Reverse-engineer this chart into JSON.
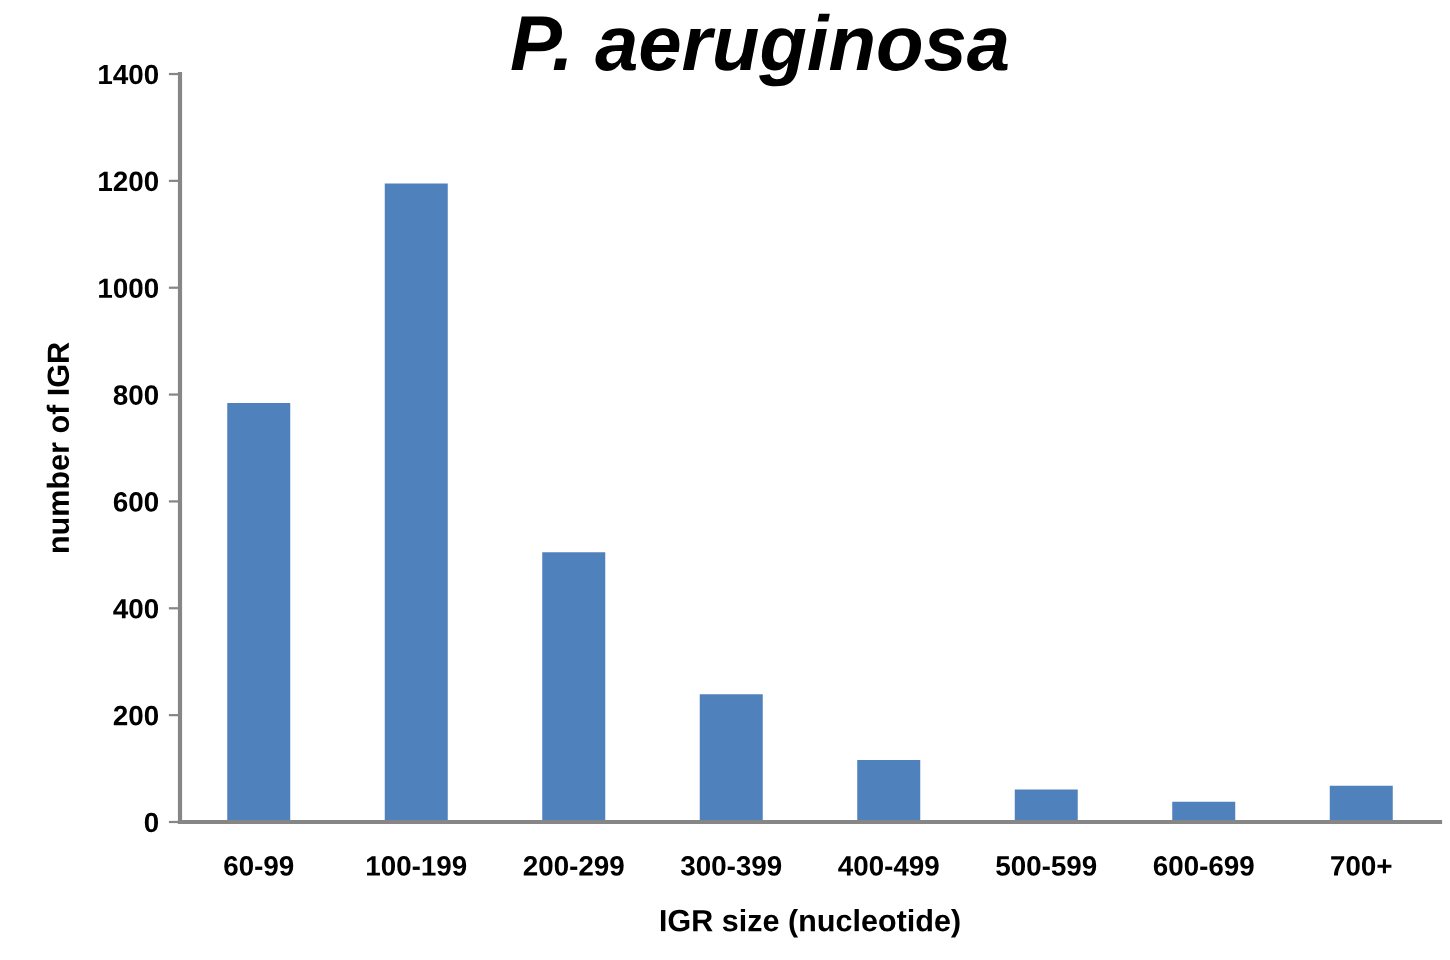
{
  "chart_data": {
    "type": "bar",
    "title": "P. aeruginosa",
    "xlabel": "IGR size (nucleotide)",
    "ylabel": "number of IGR",
    "categories": [
      "60-99",
      "100-199",
      "200-299",
      "300-399",
      "400-499",
      "500-599",
      "600-699",
      "700+"
    ],
    "values": [
      784,
      1195,
      505,
      239,
      116,
      61,
      38,
      68
    ],
    "color": "#4f81bd",
    "ylim": [
      0,
      1400
    ],
    "yticks": [
      0,
      200,
      400,
      600,
      800,
      1000,
      1200,
      1400
    ],
    "grid": false,
    "legend": false
  }
}
